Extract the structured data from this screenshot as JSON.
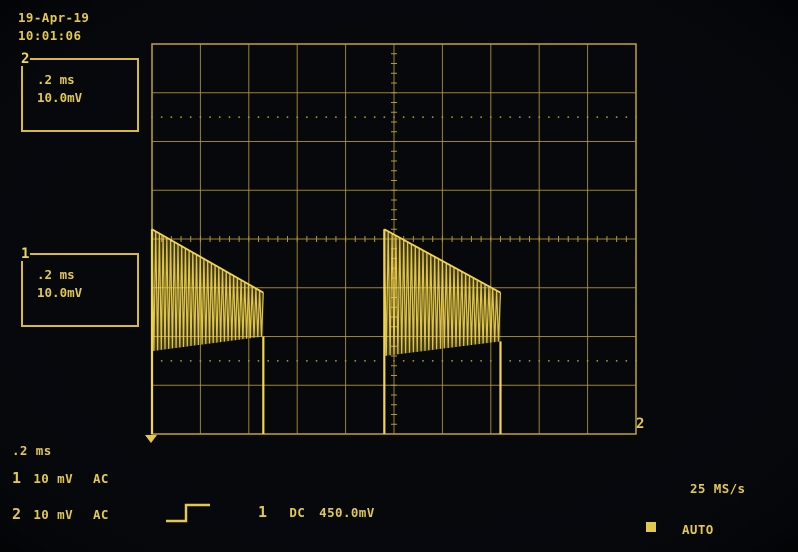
{
  "header": {
    "date": "19-Apr-19",
    "time": "10:01:06"
  },
  "channel2_box": {
    "label": "2",
    "timebase": ".2 ms",
    "volts_div": "10.0mV"
  },
  "channel1_box": {
    "label": "1",
    "timebase": ".2 ms",
    "volts_div": "10.0mV"
  },
  "timebase_readout": ".2 ms",
  "channel1_setting": {
    "number": "1",
    "volts": "10 mV",
    "coupling": "AC"
  },
  "channel2_setting": {
    "number": "2",
    "volts": "10 mV",
    "coupling": "AC"
  },
  "trigger": {
    "source": "1",
    "coupling": "DC",
    "level": "450.0mV",
    "slope_icon": "rising-edge-icon"
  },
  "sample_rate": "25 MS/s",
  "trigger_mode": "AUTO",
  "grid_marker_right": "2",
  "colors": {
    "trace": "#f2d54a",
    "grid": "#b59a30",
    "background": "#06080c"
  },
  "waveform": {
    "pulses": [
      {
        "start_div": 0.0,
        "end_div": 2.3,
        "top_div": 4.2,
        "bottom_div": 1.7,
        "end_top_div": 2.9,
        "end_bottom_div": 2.0
      },
      {
        "start_div": 4.8,
        "end_div": 7.2,
        "top_div": 4.2,
        "bottom_div": 1.6,
        "end_top_div": 2.9,
        "end_bottom_div": 1.9
      }
    ],
    "baseline_div": 0.0
  }
}
